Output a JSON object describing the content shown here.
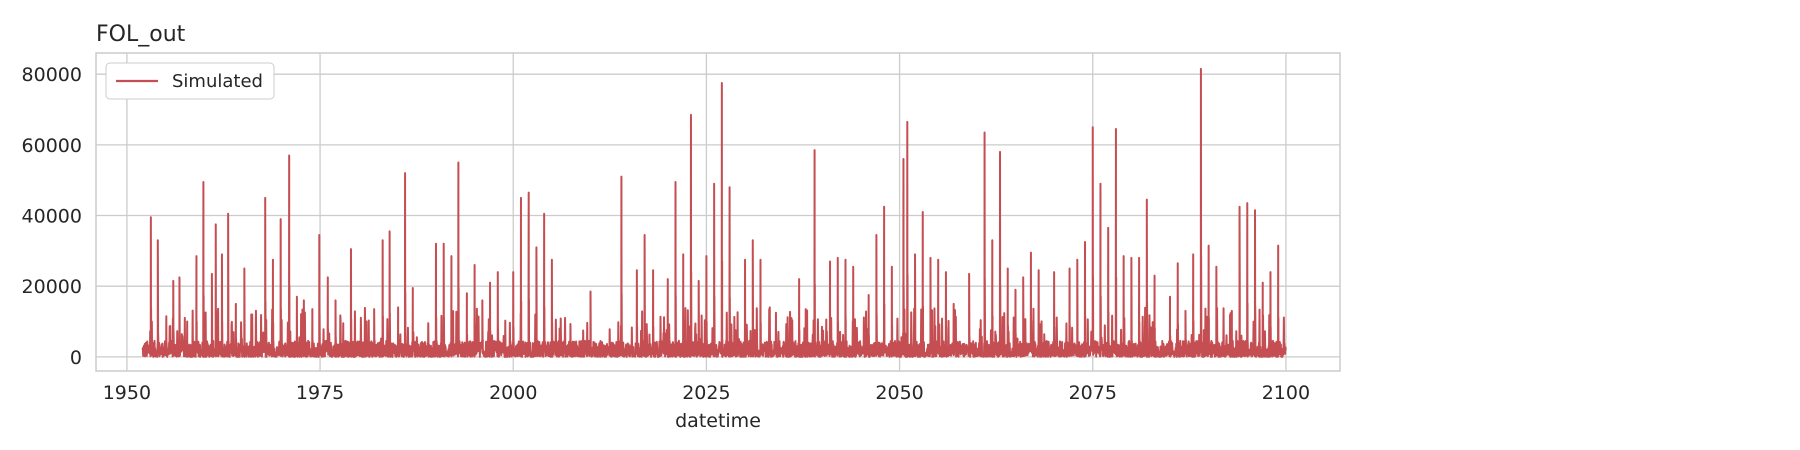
{
  "chart_data": {
    "type": "line",
    "title": "FOL_out",
    "xlabel": "datetime",
    "ylabel": "",
    "xlim": [
      1946,
      2107
    ],
    "ylim": [
      -4000,
      86000
    ],
    "x_ticks": [
      1950,
      1975,
      2000,
      2025,
      2050,
      2075,
      2100
    ],
    "y_ticks": [
      0,
      20000,
      40000,
      60000,
      80000
    ],
    "grid": true,
    "legend_position": "top-left",
    "series": [
      {
        "name": "Simulated",
        "color": "#c44e52",
        "x_start": 1952,
        "x_end": 2100,
        "baseline_range": [
          0,
          7000
        ],
        "peaks": [
          [
            1953.1,
            39500
          ],
          [
            1954.0,
            33000
          ],
          [
            1955.1,
            11500
          ],
          [
            1956.0,
            21500
          ],
          [
            1956.8,
            22500
          ],
          [
            1957.8,
            10000
          ],
          [
            1959.0,
            28500
          ],
          [
            1959.9,
            49500
          ],
          [
            1961.0,
            23500
          ],
          [
            1961.5,
            37500
          ],
          [
            1962.3,
            29000
          ],
          [
            1963.1,
            40500
          ],
          [
            1964.1,
            15000
          ],
          [
            1965.2,
            25000
          ],
          [
            1966.1,
            12000
          ],
          [
            1967.9,
            45000
          ],
          [
            1968.9,
            27500
          ],
          [
            1969.9,
            39000
          ],
          [
            1971.0,
            57000
          ],
          [
            1972.0,
            17000
          ],
          [
            1972.9,
            16000
          ],
          [
            1974.0,
            13500
          ],
          [
            1974.9,
            34500
          ],
          [
            1976.0,
            22500
          ],
          [
            1977.0,
            16000
          ],
          [
            1978.0,
            9500
          ],
          [
            1979.0,
            30500
          ],
          [
            1981.0,
            10000
          ],
          [
            1982.0,
            13500
          ],
          [
            1983.1,
            33000
          ],
          [
            1984.0,
            35500
          ],
          [
            1985.1,
            14000
          ],
          [
            1986.0,
            52000
          ],
          [
            1987.0,
            19500
          ],
          [
            1989.0,
            9500
          ],
          [
            1990.0,
            32000
          ],
          [
            1991.0,
            32000
          ],
          [
            1992.0,
            28500
          ],
          [
            1992.9,
            55000
          ],
          [
            1994.0,
            18000
          ],
          [
            1995.0,
            26000
          ],
          [
            1996.0,
            16000
          ],
          [
            1997.0,
            21000
          ],
          [
            1998.0,
            24000
          ],
          [
            2000.0,
            24000
          ],
          [
            2001.0,
            45000
          ],
          [
            2002.0,
            46500
          ],
          [
            2003.0,
            31000
          ],
          [
            2004.0,
            40500
          ],
          [
            2005.0,
            27500
          ],
          [
            2006.0,
            8000
          ],
          [
            2010.0,
            18500
          ],
          [
            2014.0,
            51000
          ],
          [
            2016.0,
            24500
          ],
          [
            2017.0,
            34500
          ],
          [
            2018.1,
            24500
          ],
          [
            2020.0,
            22000
          ],
          [
            2021.0,
            49500
          ],
          [
            2022.0,
            29000
          ],
          [
            2023.0,
            68500
          ],
          [
            2024.0,
            21500
          ],
          [
            2025.0,
            28500
          ],
          [
            2026.0,
            49000
          ],
          [
            2027.0,
            77500
          ],
          [
            2028.0,
            48000
          ],
          [
            2030.0,
            27500
          ],
          [
            2031.0,
            33000
          ],
          [
            2032.0,
            27500
          ],
          [
            2034.0,
            12500
          ],
          [
            2036.0,
            11000
          ],
          [
            2037.0,
            22000
          ],
          [
            2039.0,
            58500
          ],
          [
            2041.0,
            27000
          ],
          [
            2042.0,
            28000
          ],
          [
            2043.0,
            27500
          ],
          [
            2044.0,
            25500
          ],
          [
            2046.0,
            17500
          ],
          [
            2047.0,
            34500
          ],
          [
            2048.0,
            42500
          ],
          [
            2049.0,
            25500
          ],
          [
            2050.5,
            56000
          ],
          [
            2051.0,
            66500
          ],
          [
            2052.0,
            29000
          ],
          [
            2053.0,
            41000
          ],
          [
            2054.0,
            28000
          ],
          [
            2055.0,
            27500
          ],
          [
            2056.0,
            24000
          ],
          [
            2057.0,
            15000
          ],
          [
            2059.0,
            23500
          ],
          [
            2061.0,
            63500
          ],
          [
            2062.0,
            33000
          ],
          [
            2063.0,
            58000
          ],
          [
            2064.0,
            25000
          ],
          [
            2065.0,
            19000
          ],
          [
            2066.0,
            22500
          ],
          [
            2067.0,
            29500
          ],
          [
            2068.0,
            24500
          ],
          [
            2070.0,
            24000
          ],
          [
            2072.0,
            25000
          ],
          [
            2073.0,
            27500
          ],
          [
            2074.0,
            32500
          ],
          [
            2075.0,
            65000
          ],
          [
            2076.0,
            49000
          ],
          [
            2077.0,
            36500
          ],
          [
            2078.0,
            64500
          ],
          [
            2079.0,
            28500
          ],
          [
            2080.0,
            28000
          ],
          [
            2081.0,
            28000
          ],
          [
            2082.0,
            44500
          ],
          [
            2083.0,
            23000
          ],
          [
            2084.0,
            4500
          ],
          [
            2085.0,
            17000
          ],
          [
            2086.0,
            26500
          ],
          [
            2087.0,
            13000
          ],
          [
            2088.0,
            29000
          ],
          [
            2089.0,
            81500
          ],
          [
            2090.0,
            31500
          ],
          [
            2091.0,
            25500
          ],
          [
            2093.0,
            13000
          ],
          [
            2094.0,
            42500
          ],
          [
            2095.0,
            43500
          ],
          [
            2096.0,
            41500
          ],
          [
            2097.0,
            21000
          ],
          [
            2098.0,
            24000
          ],
          [
            2099.0,
            31500
          ]
        ]
      }
    ]
  }
}
